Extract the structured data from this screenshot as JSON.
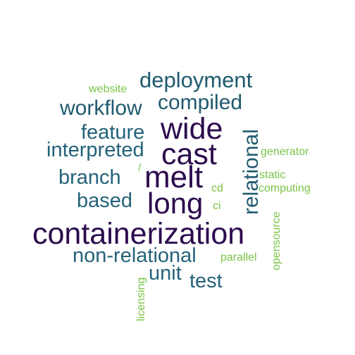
{
  "words": {
    "containerization": "containerization",
    "melt": "melt",
    "long": "long",
    "wide": "wide",
    "cast": "cast",
    "relational": "relational",
    "deployment": "deployment",
    "compiled": "compiled",
    "workflow": "workflow",
    "feature": "feature",
    "interpreted": "interpreted",
    "branch": "branch",
    "based": "based",
    "non_relational": "non-relational",
    "unit": "unit",
    "test": "test",
    "website": "website",
    "generator": "generator",
    "static": "static",
    "computing": "computing",
    "cd": "cd",
    "ci": "ci",
    "opensource": "opensource",
    "parallel": "parallel",
    "licensing": "licensing",
    "slash": "/"
  },
  "colors": {
    "dark_purple": "#2c0b4e",
    "teal": "#1f5a6e",
    "teal_light": "#24627a",
    "green": "#7cc44a"
  }
}
